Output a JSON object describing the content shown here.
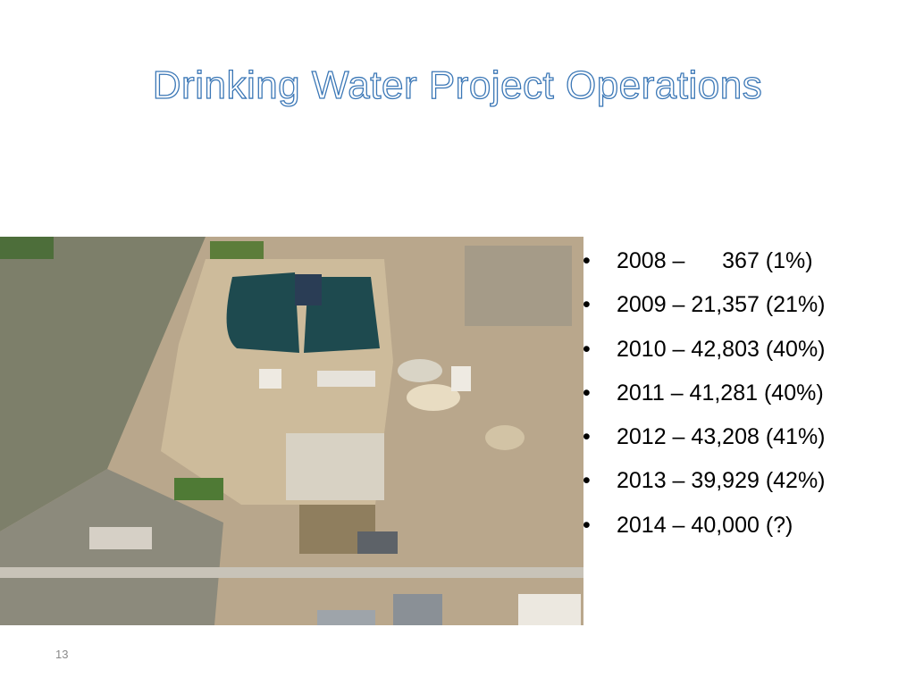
{
  "title": "Drinking Water Project Operations",
  "bullets": [
    "2008 –      367 (1%)",
    "2009 – 21,357 (21%)",
    "2010 – 42,803 (40%)",
    "2011 – 41,281 (40%)",
    "2012 – 43,208 (41%)",
    "2013 – 39,929 (42%)",
    "2014 – 40,000 (?)"
  ],
  "slide_number": "13"
}
